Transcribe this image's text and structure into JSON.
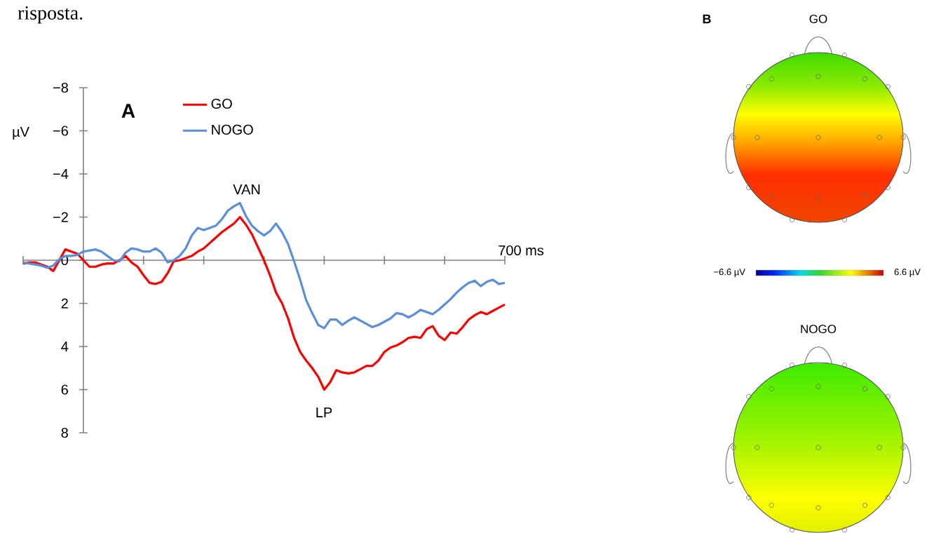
{
  "chart_data": [
    {
      "type": "line",
      "ylabel": "µV",
      "legend": "top",
      "categories": [
        null,
        null,
        null,
        null,
        null,
        null,
        null,
        null,
        null,
        null,
        null,
        null,
        null,
        null,
        null,
        null,
        null,
        null,
        null,
        null,
        null,
        null,
        null,
        null,
        null,
        null,
        null,
        null,
        null,
        null,
        null,
        null,
        null,
        null,
        null,
        null,
        null,
        null,
        null,
        null,
        null,
        null,
        null,
        null,
        null,
        null,
        null,
        null,
        null,
        null,
        null,
        null,
        null,
        null,
        null,
        null,
        null,
        null,
        null,
        null,
        null,
        null,
        null,
        null,
        null,
        null,
        null,
        null,
        null,
        null,
        null,
        null,
        null,
        null,
        null,
        null,
        null,
        null,
        null,
        null,
        null
      ],
      "ylim": [
        8,
        -8
      ],
      "yticks": [
        {
          "value": -8,
          "label": "−8"
        },
        {
          "value": -6,
          "label": "−6"
        },
        {
          "value": -4,
          "label": "−4"
        },
        {
          "value": -2,
          "label": "−2"
        },
        {
          "value": 0,
          "label": "0"
        },
        {
          "value": 2,
          "label": "2"
        },
        {
          "value": 4,
          "label": "4"
        },
        {
          "value": 6,
          "label": "6"
        },
        {
          "value": 8,
          "label": "8"
        }
      ],
      "series": [
        {
          "name": "GO",
          "color": "#ff0000",
          "values": [
            0.15,
            0.1,
            0.1,
            0.2,
            0.3,
            0.5,
            0.0,
            -0.5,
            -0.4,
            -0.3,
            0.0,
            0.3,
            0.3,
            0.2,
            0.15,
            0.15,
            0.0,
            -0.2,
            0.1,
            0.3,
            0.7,
            1.05,
            1.1,
            1.0,
            0.6,
            0.05,
            0.0,
            -0.1,
            -0.2,
            -0.4,
            -0.55,
            -0.8,
            -1.05,
            -1.3,
            -1.5,
            -1.7,
            -2.0,
            -1.65,
            -1.2,
            -0.6,
            0.0,
            0.7,
            1.5,
            2.0,
            2.7,
            3.6,
            4.25,
            4.65,
            5.0,
            5.4,
            6.0,
            5.65,
            5.1,
            5.2,
            5.25,
            5.2,
            5.05,
            4.9,
            4.9,
            4.65,
            4.25,
            4.05,
            3.95,
            3.8,
            3.6,
            3.55,
            3.6,
            3.2,
            3.05,
            3.5,
            3.7,
            3.35,
            3.4,
            3.1,
            2.75,
            2.55,
            2.4,
            2.5,
            2.35,
            2.2,
            2.05
          ]
        },
        {
          "name": "NOGO",
          "color": "#5b8fd8",
          "values": [
            0.1,
            0.15,
            0.2,
            0.25,
            0.35,
            0.25,
            -0.05,
            -0.2,
            -0.2,
            -0.25,
            -0.4,
            -0.45,
            -0.5,
            -0.4,
            -0.2,
            0.0,
            0.05,
            -0.35,
            -0.55,
            -0.5,
            -0.4,
            -0.4,
            -0.55,
            -0.35,
            0.1,
            0.0,
            -0.2,
            -0.55,
            -1.15,
            -1.5,
            -1.4,
            -1.5,
            -1.6,
            -1.9,
            -2.3,
            -2.5,
            -2.65,
            -2.05,
            -1.6,
            -1.35,
            -1.15,
            -1.35,
            -1.7,
            -1.3,
            -0.75,
            0.05,
            0.9,
            1.85,
            2.45,
            3.0,
            3.15,
            2.75,
            2.75,
            3.0,
            2.8,
            2.65,
            2.8,
            2.95,
            3.1,
            3.0,
            2.85,
            2.7,
            2.45,
            2.5,
            2.65,
            2.5,
            2.3,
            2.4,
            2.5,
            2.3,
            2.05,
            1.8,
            1.5,
            1.25,
            1.05,
            0.95,
            1.2,
            1.0,
            0.9,
            1.1,
            1.05
          ]
        }
      ],
      "annotations": [
        "A",
        "risposta.",
        "VAN",
        "LP",
        "700 ms"
      ]
    },
    {
      "type": "other",
      "title": "GO",
      "annotations": [
        "B",
        "−6.6 µV",
        "6.6 µV"
      ]
    },
    {
      "type": "other",
      "title": "NOGO"
    }
  ]
}
